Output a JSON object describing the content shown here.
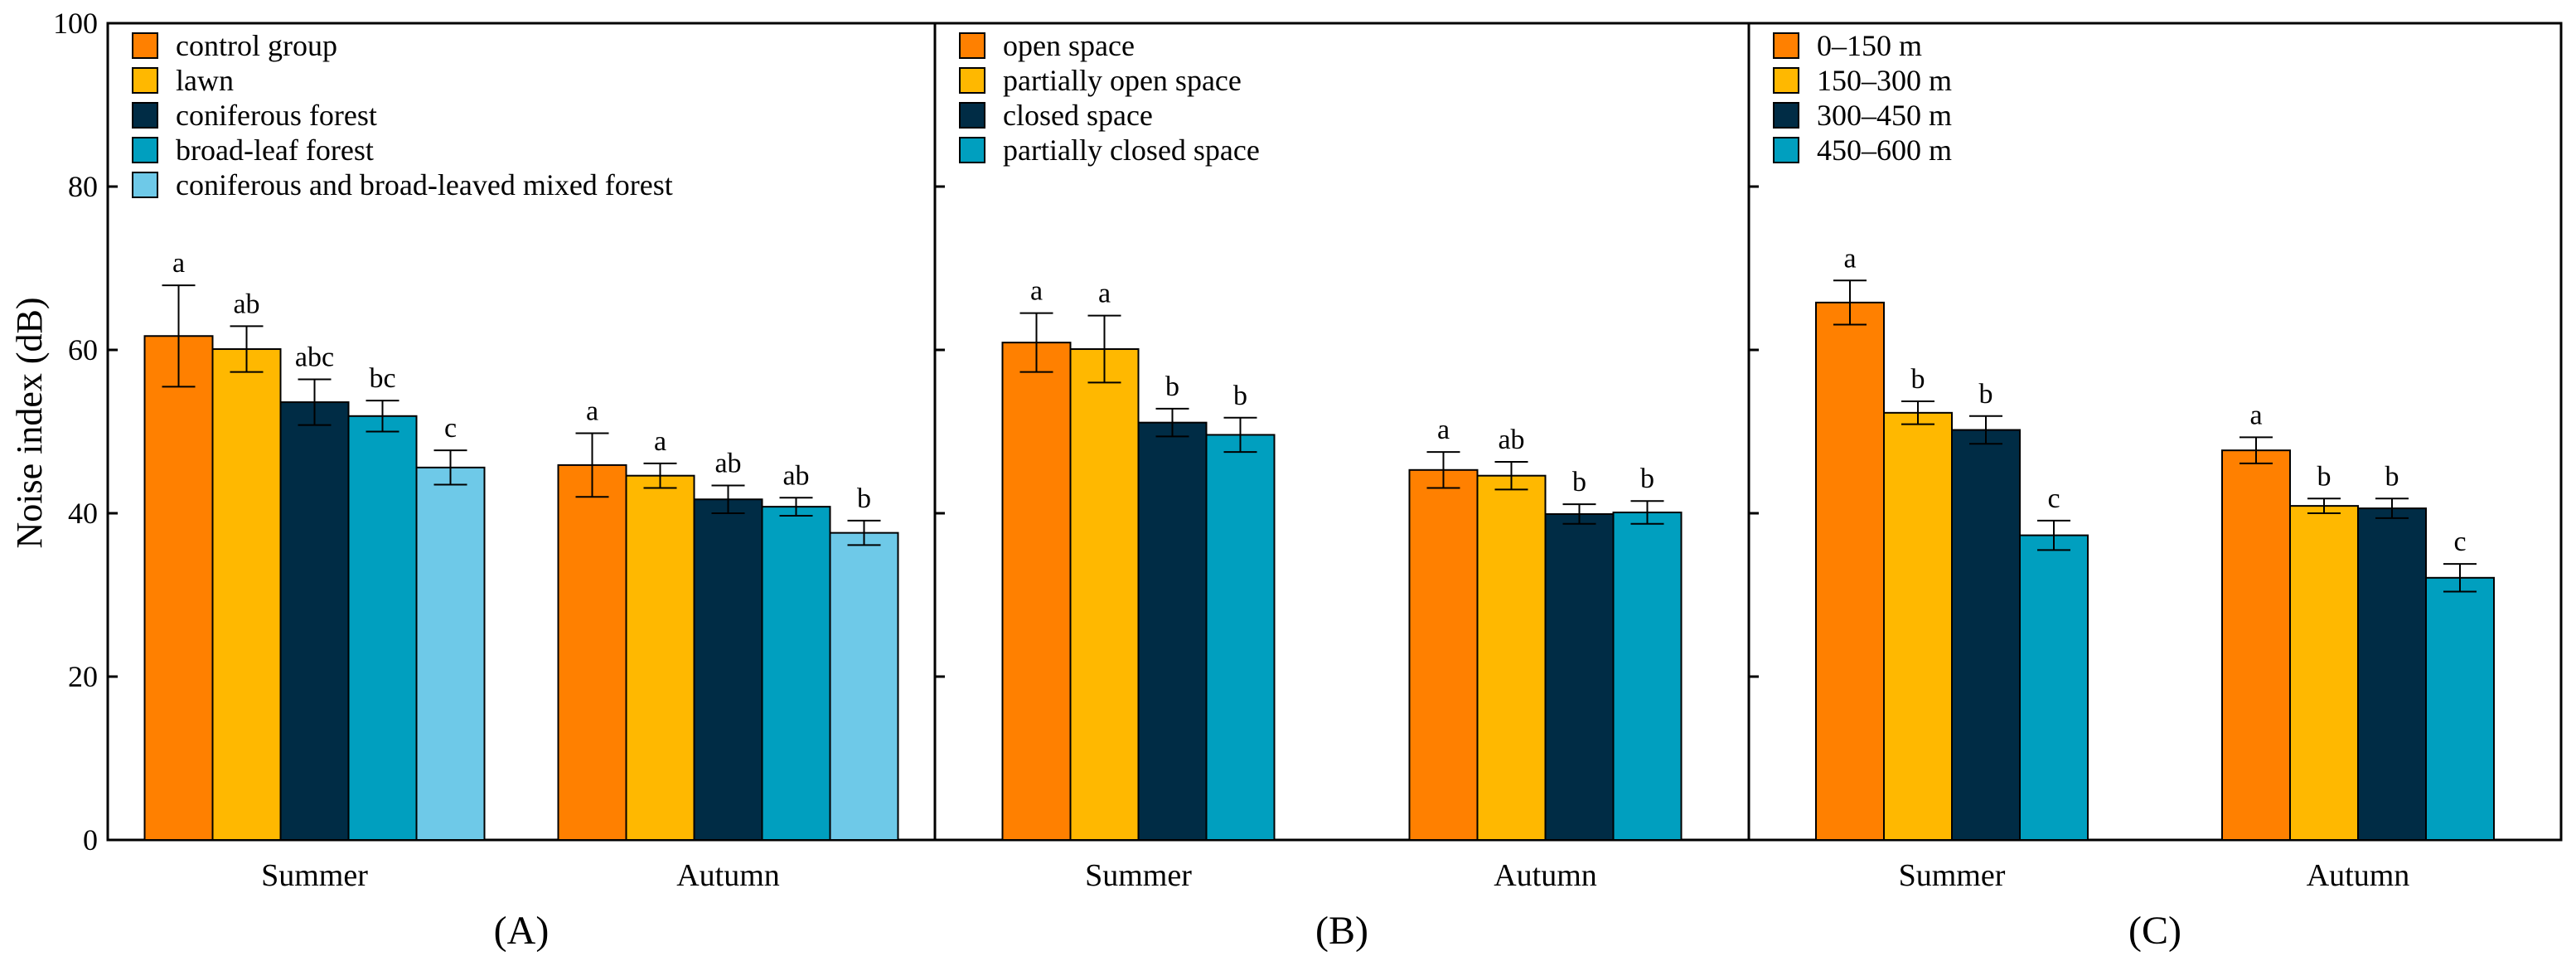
{
  "colors": {
    "orange": "#FF8000",
    "amber": "#FFB800",
    "navy": "#002C45",
    "teal": "#009FBF",
    "skyblue": "#6EC9E8"
  },
  "ylabel": "Noise index (dB)",
  "ylim": [
    0,
    100
  ],
  "yticks": [
    "0",
    "20",
    "40",
    "60",
    "80",
    "100"
  ],
  "chart_data": [
    {
      "type": "bar",
      "panel_label": "(A)",
      "ylabel": "Noise index (dB)",
      "ylim": [
        0,
        100
      ],
      "categories": [
        "Summer",
        "Autumn"
      ],
      "legend_position": "top-left",
      "series": [
        {
          "name": "control group",
          "color": "#FF8000",
          "values": [
            61.7,
            45.9
          ],
          "errors": [
            6.2,
            3.9
          ],
          "letters": [
            "a",
            "a"
          ]
        },
        {
          "name": "lawn",
          "color": "#FFB800",
          "values": [
            60.1,
            44.6
          ],
          "errors": [
            2.8,
            1.5
          ],
          "letters": [
            "ab",
            "a"
          ]
        },
        {
          "name": "coniferous forest",
          "color": "#002C45",
          "values": [
            53.6,
            41.7
          ],
          "errors": [
            2.8,
            1.7
          ],
          "letters": [
            "abc",
            "ab"
          ]
        },
        {
          "name": "broad-leaf forest",
          "color": "#009FBF",
          "values": [
            51.9,
            40.8
          ],
          "errors": [
            1.9,
            1.1
          ],
          "letters": [
            "bc",
            "ab"
          ]
        },
        {
          "name": "coniferous and broad-leaved mixed forest",
          "color": "#6EC9E8",
          "values": [
            45.6,
            37.6
          ],
          "errors": [
            2.1,
            1.5
          ],
          "letters": [
            "c",
            "b"
          ]
        }
      ]
    },
    {
      "type": "bar",
      "panel_label": "(B)",
      "ylim": [
        0,
        100
      ],
      "categories": [
        "Summer",
        "Autumn"
      ],
      "legend_position": "top-left",
      "series": [
        {
          "name": "open space",
          "color": "#FF8000",
          "values": [
            60.9,
            45.3
          ],
          "errors": [
            3.6,
            2.2
          ],
          "letters": [
            "a",
            "a"
          ]
        },
        {
          "name": "partially open space",
          "color": "#FFB800",
          "values": [
            60.1,
            44.6
          ],
          "errors": [
            4.1,
            1.7
          ],
          "letters": [
            "a",
            "ab"
          ]
        },
        {
          "name": "closed space",
          "color": "#002C45",
          "values": [
            51.1,
            39.9
          ],
          "errors": [
            1.7,
            1.2
          ],
          "letters": [
            "b",
            "b"
          ]
        },
        {
          "name": "partially closed space",
          "color": "#009FBF",
          "values": [
            49.6,
            40.1
          ],
          "errors": [
            2.1,
            1.4
          ],
          "letters": [
            "b",
            "b"
          ]
        }
      ]
    },
    {
      "type": "bar",
      "panel_label": "(C)",
      "ylim": [
        0,
        100
      ],
      "categories": [
        "Summer",
        "Autumn"
      ],
      "legend_position": "top-left",
      "series": [
        {
          "name": "0–150 m",
          "color": "#FF8000",
          "values": [
            65.8,
            47.7
          ],
          "errors": [
            2.7,
            1.6
          ],
          "letters": [
            "a",
            "a"
          ]
        },
        {
          "name": "150–300 m",
          "color": "#FFB800",
          "values": [
            52.3,
            40.9
          ],
          "errors": [
            1.4,
            0.9
          ],
          "letters": [
            "b",
            "b"
          ]
        },
        {
          "name": "300–450 m",
          "color": "#002C45",
          "values": [
            50.2,
            40.6
          ],
          "errors": [
            1.7,
            1.2
          ],
          "letters": [
            "b",
            "b"
          ]
        },
        {
          "name": "450–600 m",
          "color": "#009FBF",
          "values": [
            37.3,
            32.1
          ],
          "errors": [
            1.8,
            1.7
          ],
          "letters": [
            "c",
            "c"
          ]
        }
      ]
    }
  ]
}
